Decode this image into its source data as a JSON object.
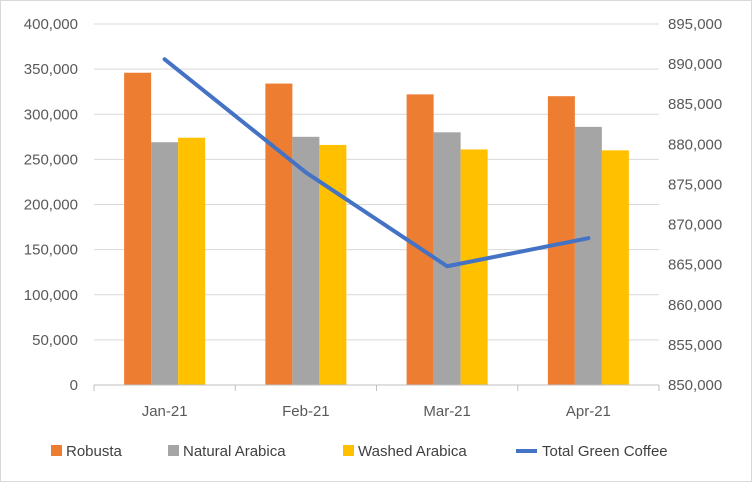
{
  "chart_data": {
    "type": "bar+line",
    "categories": [
      "Jan-21",
      "Feb-21",
      "Mar-21",
      "Apr-21"
    ],
    "series": [
      {
        "name": "Robusta",
        "kind": "bar",
        "axis": "left",
        "color": "#ED7D31",
        "values": [
          346000,
          334000,
          322000,
          320000
        ]
      },
      {
        "name": "Natural Arabica",
        "kind": "bar",
        "axis": "left",
        "color": "#A5A5A5",
        "values": [
          269000,
          275000,
          280000,
          286000
        ]
      },
      {
        "name": "Washed Arabica",
        "kind": "bar",
        "axis": "left",
        "color": "#FFC000",
        "values": [
          274000,
          266000,
          261000,
          260000
        ]
      },
      {
        "name": "Total Green Coffee",
        "kind": "line",
        "axis": "right",
        "color": "#4472C4",
        "values": [
          890600,
          876500,
          864800,
          868300
        ]
      }
    ],
    "y_left": {
      "min": 0,
      "max": 400000,
      "ticks": [
        "0",
        "50,000",
        "100,000",
        "150,000",
        "200,000",
        "250,000",
        "300,000",
        "350,000",
        "400,000"
      ]
    },
    "y_right": {
      "min": 850000,
      "max": 895000,
      "ticks": [
        "850,000",
        "855,000",
        "860,000",
        "865,000",
        "870,000",
        "875,000",
        "880,000",
        "885,000",
        "890,000",
        "895,000"
      ]
    },
    "grid": true,
    "legend_position": "bottom"
  }
}
